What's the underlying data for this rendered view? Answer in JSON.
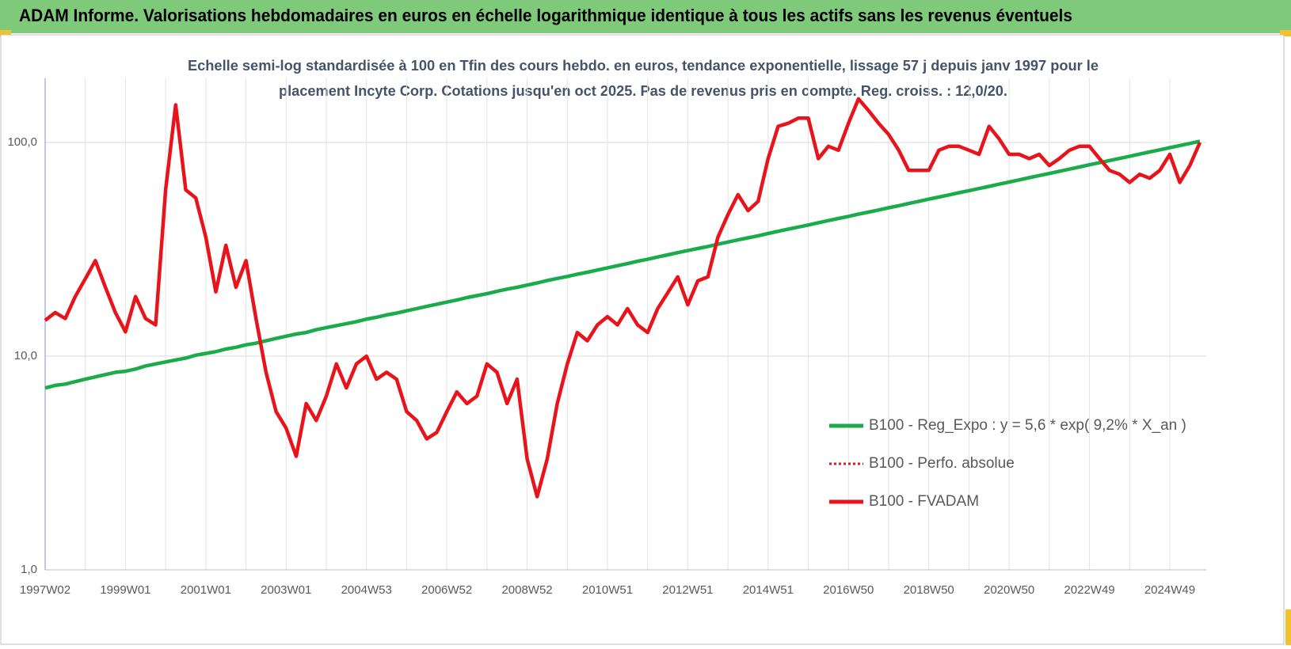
{
  "chart_data": {
    "type": "line",
    "title": "ADAM Informe. Valorisations hebdomadaires en euros en échelle logarithmique identique à tous les actifs sans les revenus éventuels",
    "subtitle": [
      "Echelle semi-log standardisée à 100 en Tfin des cours hebdo. en euros, tendance exponentielle, lissage 57 j depuis janv 1997 pour le",
      "placement Incyte  Corp. Cotations jusqu'en oct 2025. Pas de revenus pris en compte. Reg. croiss. : 12,0/20."
    ],
    "log_scale": true,
    "grid": true,
    "legend": "right",
    "ylim": [
      1,
      200
    ],
    "yticks": [
      {
        "value": 1,
        "label": "1,0"
      },
      {
        "value": 10,
        "label": "10,0"
      },
      {
        "value": 100,
        "label": "100,0"
      }
    ],
    "categories": [
      "1997W02",
      null,
      null,
      null,
      null,
      null,
      null,
      null,
      "1999W01",
      null,
      null,
      null,
      null,
      null,
      null,
      null,
      "2001W01",
      null,
      null,
      null,
      null,
      null,
      null,
      null,
      "2003W01",
      null,
      null,
      null,
      null,
      null,
      null,
      null,
      "2004W53",
      null,
      null,
      null,
      null,
      null,
      null,
      null,
      "2006W52",
      null,
      null,
      null,
      null,
      null,
      null,
      null,
      "2008W52",
      null,
      null,
      null,
      null,
      null,
      null,
      null,
      "2010W51",
      null,
      null,
      null,
      null,
      null,
      null,
      null,
      "2012W51",
      null,
      null,
      null,
      null,
      null,
      null,
      null,
      "2014W51",
      null,
      null,
      null,
      null,
      null,
      null,
      null,
      "2016W50",
      null,
      null,
      null,
      null,
      null,
      null,
      null,
      "2018W50",
      null,
      null,
      null,
      null,
      null,
      null,
      null,
      "2020W50",
      null,
      null,
      null,
      null,
      null,
      null,
      null,
      "2022W49",
      null,
      null,
      null,
      null,
      null,
      null,
      null,
      "2024W49",
      null,
      null,
      null
    ],
    "series": [
      {
        "name": "B100 - Reg_Expo : y = 5,6 * exp( 9,2% *  X_an )",
        "color": "#1aab4b",
        "style": "solid",
        "values": [
          7.1,
          7.3,
          7.4,
          7.6,
          7.8,
          8.0,
          8.2,
          8.4,
          8.5,
          8.7,
          9.0,
          9.2,
          9.4,
          9.6,
          9.8,
          10.1,
          10.3,
          10.5,
          10.8,
          11.0,
          11.3,
          11.5,
          11.8,
          12.1,
          12.4,
          12.7,
          12.9,
          13.3,
          13.6,
          13.9,
          14.2,
          14.5,
          14.9,
          15.2,
          15.6,
          15.9,
          16.3,
          16.7,
          17.1,
          17.5,
          17.9,
          18.3,
          18.8,
          19.2,
          19.6,
          20.1,
          20.6,
          21.0,
          21.5,
          22.0,
          22.6,
          23.1,
          23.6,
          24.2,
          24.7,
          25.3,
          25.9,
          26.5,
          27.1,
          27.8,
          28.4,
          29.1,
          29.8,
          30.5,
          31.2,
          31.9,
          32.6,
          33.4,
          34.2,
          35.0,
          35.8,
          36.6,
          37.5,
          38.4,
          39.3,
          40.2,
          41.1,
          42.1,
          43.1,
          44.1,
          45.1,
          46.2,
          47.2,
          48.3,
          49.5,
          50.6,
          51.8,
          53.0,
          54.3,
          55.5,
          56.8,
          58.2,
          59.5,
          60.9,
          62.3,
          63.8,
          65.3,
          66.8,
          68.4,
          70.0,
          71.6,
          73.3,
          75.0,
          76.8,
          78.6,
          80.4,
          82.3,
          84.2,
          86.2,
          88.2,
          90.3,
          92.4,
          94.5,
          96.7,
          99.0,
          101.3
        ]
      },
      {
        "name": "B100 - Perfo. absolue",
        "color": "#e8141c",
        "style": "dotted",
        "values": [
          14.7,
          16,
          15,
          19,
          23,
          28,
          21,
          16,
          13,
          19,
          15,
          14,
          60,
          150,
          60,
          55,
          36,
          20,
          33,
          21,
          28,
          15,
          8.4,
          5.5,
          4.6,
          3.4,
          6,
          5,
          6.5,
          9.2,
          7.1,
          9.2,
          10,
          7.8,
          8.4,
          7.8,
          5.5,
          5,
          4.1,
          4.4,
          5.5,
          6.8,
          6,
          6.5,
          9.2,
          8.4,
          6,
          7.8,
          3.3,
          2.2,
          3.3,
          6,
          9.2,
          12.9,
          11.8,
          14,
          15.3,
          14,
          16.7,
          14,
          12.9,
          16.7,
          19.8,
          23.5,
          17.4,
          22.5,
          23.5,
          36,
          46,
          57,
          48,
          53,
          84,
          119,
          123,
          130,
          130,
          84,
          96,
          92,
          123,
          160,
          141,
          123,
          109,
          92,
          74,
          74,
          74,
          92,
          96,
          96,
          92,
          88,
          119,
          104,
          88,
          88,
          84,
          88,
          78,
          84,
          92,
          96,
          96,
          84,
          74,
          71,
          65,
          71,
          68,
          74,
          88,
          65,
          78,
          100
        ]
      },
      {
        "name": "B100 - FVADAM",
        "color": "#e8141c",
        "style": "solid",
        "values": [
          14.7,
          16,
          15,
          19,
          23,
          28,
          21,
          16,
          13,
          19,
          15,
          14,
          60,
          150,
          60,
          55,
          36,
          20,
          33,
          21,
          28,
          15,
          8.4,
          5.5,
          4.6,
          3.4,
          6,
          5,
          6.5,
          9.2,
          7.1,
          9.2,
          10,
          7.8,
          8.4,
          7.8,
          5.5,
          5,
          4.1,
          4.4,
          5.5,
          6.8,
          6,
          6.5,
          9.2,
          8.4,
          6,
          7.8,
          3.3,
          2.2,
          3.3,
          6,
          9.2,
          12.9,
          11.8,
          14,
          15.3,
          14,
          16.7,
          14,
          12.9,
          16.7,
          19.8,
          23.5,
          17.4,
          22.5,
          23.5,
          36,
          46,
          57,
          48,
          53,
          84,
          119,
          123,
          130,
          130,
          84,
          96,
          92,
          123,
          160,
          141,
          123,
          109,
          92,
          74,
          74,
          74,
          92,
          96,
          96,
          92,
          88,
          119,
          104,
          88,
          88,
          84,
          88,
          78,
          84,
          92,
          96,
          96,
          84,
          74,
          71,
          65,
          71,
          68,
          74,
          88,
          65,
          78,
          100
        ]
      }
    ]
  }
}
